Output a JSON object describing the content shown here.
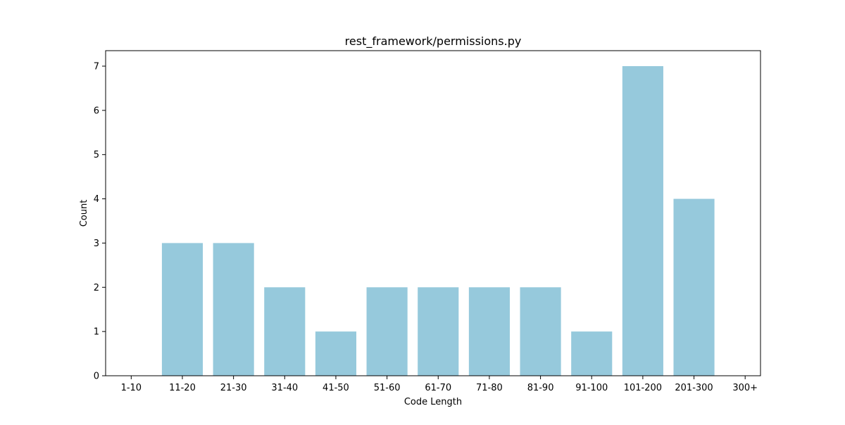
{
  "chart_data": {
    "type": "bar",
    "title": "rest_framework/permissions.py",
    "xlabel": "Code Length",
    "ylabel": "Count",
    "categories": [
      "1-10",
      "11-20",
      "21-30",
      "31-40",
      "41-50",
      "51-60",
      "61-70",
      "71-80",
      "81-90",
      "91-100",
      "101-200",
      "201-300",
      "300+"
    ],
    "values": [
      0,
      3,
      3,
      2,
      1,
      2,
      2,
      2,
      2,
      1,
      7,
      4,
      0
    ],
    "ylim": [
      0,
      7.35
    ],
    "yticks": [
      "0",
      "1",
      "2",
      "3",
      "4",
      "5",
      "6",
      "7"
    ],
    "bar_color": "#96c9dc",
    "grid": false,
    "legend": "none"
  }
}
